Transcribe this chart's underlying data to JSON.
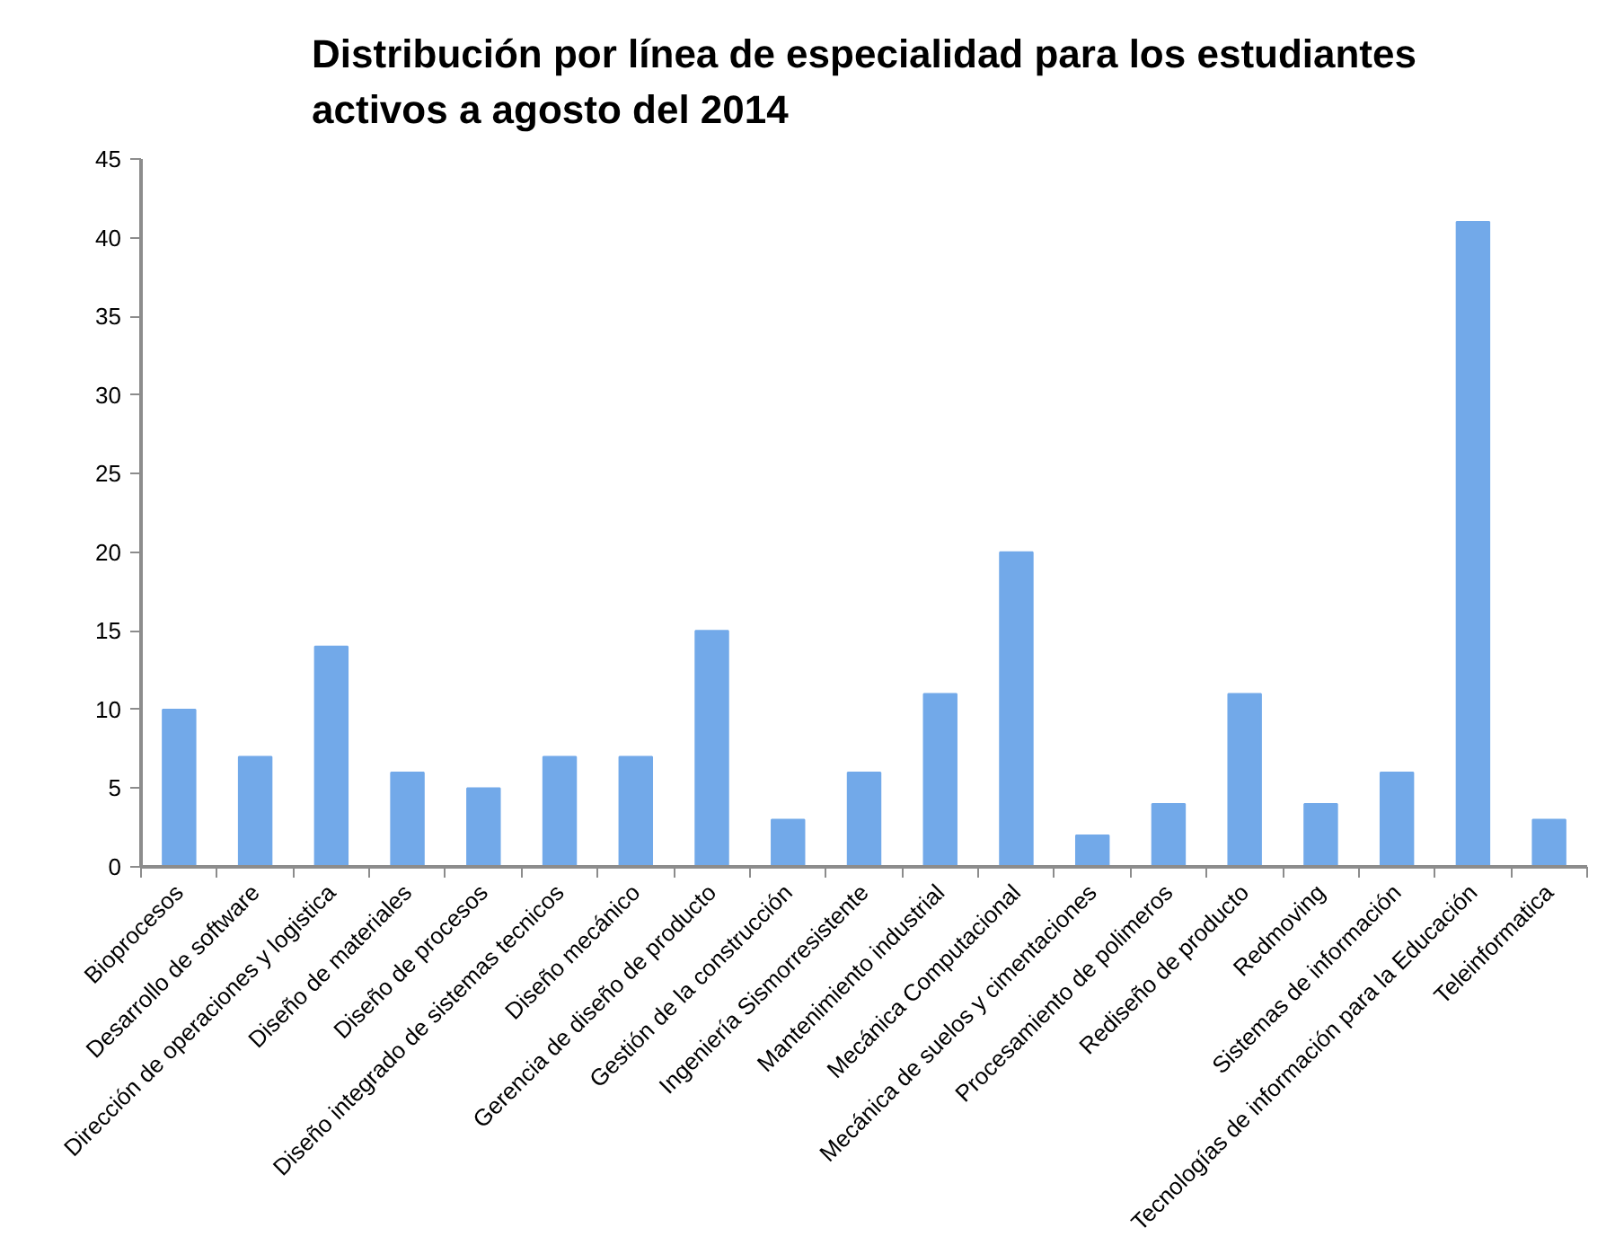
{
  "chart_data": {
    "type": "bar",
    "title": "Distribución por línea de especialidad para los estudiantes activos a agosto del 2014",
    "categories": [
      "Bioprocesos",
      "Desarrollo de software",
      "Dirección de operaciones y logistica",
      "Diseño de materiales",
      "Diseño de procesos",
      "Diseño integrado de sistemas tecnicos",
      "Diseño mecánico",
      "Gerencia de diseño de producto",
      "Gestión de la construcción",
      "Ingeniería Sismorresistente",
      "Mantenimiento industrial",
      "Mecánica Computacional",
      "Mecánica de suelos y cimentaciones",
      "Procesamiento de polimeros",
      "Rediseño de producto",
      "Redmoving",
      "Sistemas de información",
      "Tecnologías de información para la Educación",
      "Teleinformatica"
    ],
    "values": [
      10,
      7,
      14,
      6,
      5,
      7,
      7,
      15,
      3,
      6,
      11,
      20,
      2,
      4,
      11,
      4,
      6,
      41,
      3
    ],
    "color": "#72a9e9",
    "ylim": [
      0,
      45
    ],
    "yticks": [
      0,
      5,
      10,
      15,
      20,
      25,
      30,
      35,
      40,
      45
    ]
  }
}
